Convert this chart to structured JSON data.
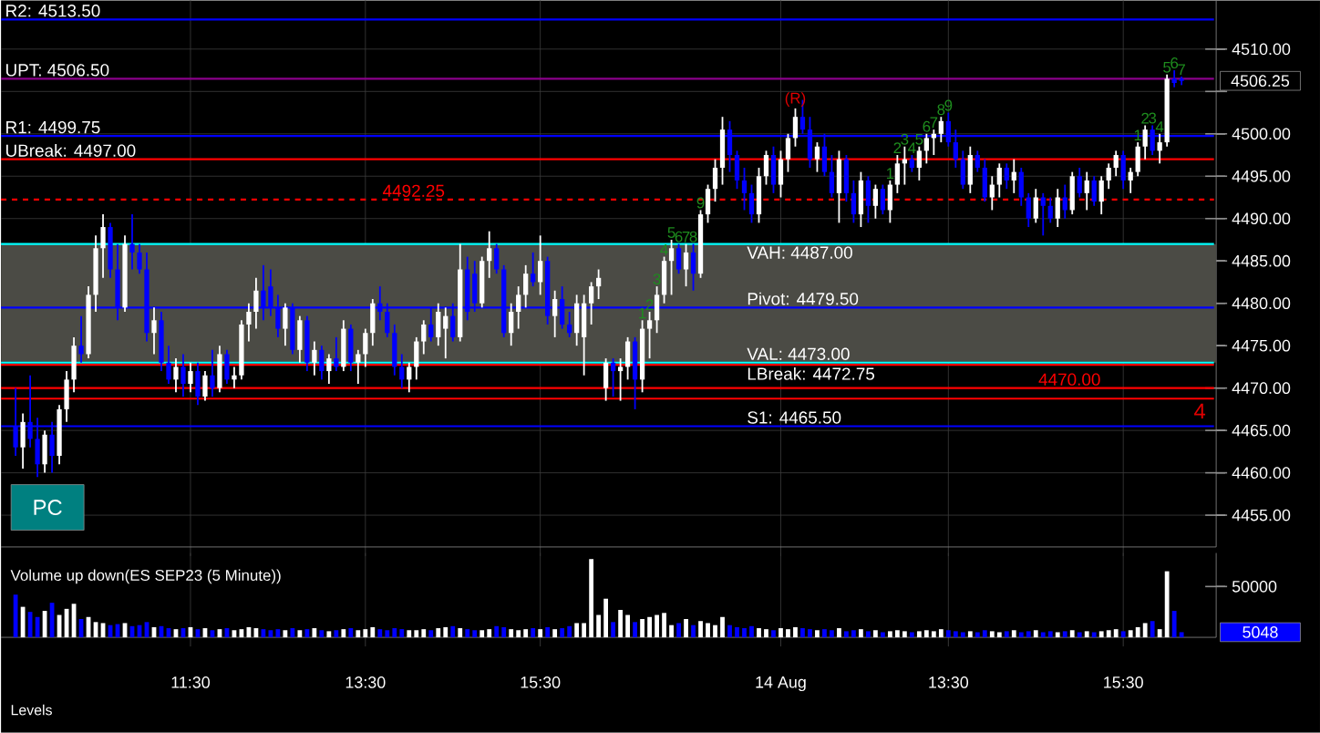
{
  "chart_data": [
    {
      "type": "candlestick",
      "categories": [
        null,
        null,
        null,
        null,
        null,
        null,
        null,
        null,
        null,
        null,
        null,
        null,
        null,
        null,
        null,
        null,
        null,
        null,
        null,
        null,
        null,
        null,
        null,
        null,
        null,
        null,
        null,
        null,
        null,
        null,
        null,
        null,
        null,
        null,
        null,
        null,
        null,
        null,
        null,
        null,
        null,
        null,
        null,
        null,
        null,
        null,
        null,
        null,
        null,
        null,
        null,
        null,
        null,
        null,
        null,
        null,
        null,
        null,
        null,
        null,
        null,
        null,
        null,
        null,
        null,
        null,
        null,
        null,
        null,
        null,
        null,
        null,
        null,
        null,
        null,
        null,
        null,
        null,
        null,
        null,
        null,
        null,
        null,
        null,
        null,
        null,
        null,
        null,
        null,
        null,
        null,
        null,
        null,
        null,
        null,
        null,
        null,
        null,
        null,
        null,
        null,
        null,
        null,
        null,
        null,
        null,
        null,
        null,
        null,
        null,
        null,
        null,
        null,
        null,
        null,
        null,
        null,
        null,
        null,
        null,
        null,
        null,
        null,
        null,
        null,
        null,
        null,
        null,
        null,
        null,
        null,
        null,
        null,
        null,
        null,
        null,
        null,
        null,
        null,
        null,
        null,
        null,
        null,
        null,
        null,
        null,
        null,
        null,
        null,
        null,
        null,
        null,
        null,
        null,
        null,
        null,
        null,
        null,
        null,
        null,
        null
      ],
      "ohlc": [
        [
          4465.5,
          4470,
          4462,
          4463
        ],
        [
          4463,
          4467,
          4460.5,
          4466
        ],
        [
          4466,
          4471.5,
          4463,
          4464
        ],
        [
          4464,
          4466.5,
          4459.5,
          4461
        ],
        [
          4461,
          4465,
          4460,
          4464.5
        ],
        [
          4464.5,
          4466,
          4460,
          4462
        ],
        [
          4462,
          4468,
          4461,
          4467.5
        ],
        [
          4467.5,
          4472,
          4466,
          4471
        ],
        [
          4471,
          4476,
          4469.5,
          4475
        ],
        [
          4475,
          4478.5,
          4473,
          4474
        ],
        [
          4474,
          4482,
          4473.5,
          4481
        ],
        [
          4481,
          4488,
          4479,
          4486.5
        ],
        [
          4486.5,
          4490.5,
          4483,
          4489
        ],
        [
          4489,
          4489.5,
          4483,
          4484
        ],
        [
          4484,
          4487,
          4478,
          4479.5
        ],
        [
          4479.5,
          4488,
          4479,
          4487
        ],
        [
          4487,
          4490.5,
          4484,
          4486
        ],
        [
          4486,
          4487,
          4483.5,
          4484
        ],
        [
          4484,
          4486,
          4475.5,
          4476.5
        ],
        [
          4476.5,
          4479.5,
          4474,
          4478
        ],
        [
          4478,
          4479,
          4472,
          4473
        ],
        [
          4473,
          4475,
          4470.5,
          4471
        ],
        [
          4471,
          4473.5,
          4469.5,
          4472.5
        ],
        [
          4472.5,
          4474,
          4469,
          4470.5
        ],
        [
          4470.5,
          4473,
          4469.5,
          4472
        ],
        [
          4472,
          4473,
          4468,
          4469
        ],
        [
          4469,
          4472,
          4468.5,
          4471.5
        ],
        [
          4471.5,
          4474.5,
          4469,
          4470
        ],
        [
          4470,
          4475,
          4469.5,
          4474
        ],
        [
          4474,
          4474.5,
          4470.5,
          4471
        ],
        [
          4471,
          4472.5,
          4470,
          4471.5
        ],
        [
          4471.5,
          4478,
          4471,
          4477.5
        ],
        [
          4477.5,
          4480,
          4475.5,
          4479
        ],
        [
          4479,
          4483,
          4477,
          4481.5
        ],
        [
          4481.5,
          4484.5,
          4478,
          4479.5
        ],
        [
          4482,
          4484,
          4478.5,
          4479.5
        ],
        [
          4479.5,
          4481,
          4476,
          4477
        ],
        [
          4477,
          4480,
          4475,
          4479.5
        ],
        [
          4479.5,
          4480,
          4474,
          4474.5
        ],
        [
          4474.5,
          4478.5,
          4473,
          4478
        ],
        [
          4478,
          4478.5,
          4472,
          4473
        ],
        [
          4473,
          4475.5,
          4471.5,
          4474.5
        ],
        [
          4474.5,
          4475,
          4471,
          4472
        ],
        [
          4472,
          4474,
          4470.5,
          4473.5
        ],
        [
          4473.5,
          4476,
          4472,
          4472.5
        ],
        [
          4472.5,
          4478,
          4472,
          4477
        ],
        [
          4477,
          4477.5,
          4472,
          4473
        ],
        [
          4473,
          4474.5,
          4470.5,
          4474
        ],
        [
          4474,
          4477,
          4472.5,
          4476.5
        ],
        [
          4476.5,
          4480.5,
          4475,
          4480
        ],
        [
          4480,
          4482,
          4478,
          4479
        ],
        [
          4479,
          4480,
          4476,
          4476.5
        ],
        [
          4476.5,
          4477.5,
          4471.5,
          4472.5
        ],
        [
          4472.5,
          4474,
          4470,
          4471
        ],
        [
          4471,
          4473,
          4469.5,
          4472.5
        ],
        [
          4472.5,
          4476,
          4471,
          4475.5
        ],
        [
          4475.5,
          4478,
          4474,
          4477.5
        ],
        [
          4477.5,
          4479.5,
          4475.5,
          4476
        ],
        [
          4476,
          4480,
          4475,
          4479
        ],
        [
          4477,
          4479.5,
          4473.5,
          4478.5
        ],
        [
          4478.5,
          4480,
          4475.5,
          4476
        ],
        [
          4476,
          4487,
          4475.5,
          4484
        ],
        [
          4484,
          4485.5,
          4478,
          4479
        ],
        [
          4483.5,
          4485,
          4479,
          4480
        ],
        [
          4480,
          4485.5,
          4479.5,
          4485
        ],
        [
          4485,
          4488.5,
          4483,
          4486.5
        ],
        [
          4486.5,
          4487,
          4483.5,
          4484
        ],
        [
          4484,
          4484.5,
          4476,
          4476.5
        ],
        [
          4476.5,
          4480,
          4475,
          4479
        ],
        [
          4479,
          4482,
          4477,
          4481
        ],
        [
          4481,
          4484.5,
          4479.5,
          4483.5
        ],
        [
          4483.5,
          4486,
          4482,
          4482.5
        ],
        [
          4482.5,
          4488,
          4481,
          4485
        ],
        [
          4485,
          4485.5,
          4477.5,
          4478.5
        ],
        [
          4478.5,
          4481.5,
          4476,
          4480.5
        ],
        [
          4480.5,
          4482,
          4477,
          4477.5
        ],
        [
          4477.5,
          4479,
          4476,
          4476.5
        ],
        [
          4476.5,
          4481,
          4475,
          4480
        ],
        [
          4476,
          4481,
          4471.5,
          4480
        ],
        [
          4480,
          4482.5,
          4477.5,
          4482
        ],
        [
          4482,
          4484,
          4480.5,
          4483
        ],
        [
          4470,
          4473.5,
          4468.5,
          4473
        ],
        [
          4473,
          4473.5,
          4469,
          4472
        ],
        [
          4472,
          4473.5,
          4468.5,
          4472.5
        ],
        [
          4472.5,
          4476,
          4471,
          4475.5
        ],
        [
          4475.5,
          4476,
          4467.5,
          4471
        ],
        [
          4471,
          4478,
          4469.5,
          4477
        ],
        [
          4477,
          4479,
          4473.5,
          4478
        ],
        [
          4478,
          4482,
          4476.5,
          4481
        ],
        [
          4481,
          4485.5,
          4480,
          4485
        ],
        [
          4485,
          4487.5,
          4481,
          4486.5
        ],
        [
          4486.5,
          4487,
          4483.5,
          4484
        ],
        [
          4484,
          4487,
          4482,
          4486
        ],
        [
          4486,
          4487,
          4481.5,
          4483.5
        ],
        [
          4483.5,
          4491,
          4483,
          4490.5
        ],
        [
          4490.5,
          4494,
          4489.5,
          4493.5
        ],
        [
          4493.5,
          4497,
          4492,
          4496
        ],
        [
          4496,
          4502,
          4494,
          4500.5
        ],
        [
          4500.5,
          4501.5,
          4495.5,
          4497.5
        ],
        [
          4497.5,
          4498,
          4493.5,
          4494.5
        ],
        [
          4494.5,
          4496,
          4491,
          4493
        ],
        [
          4493,
          4494,
          4489.5,
          4490.5
        ],
        [
          4490.5,
          4496,
          4489.5,
          4495
        ],
        [
          4495,
          4498,
          4494,
          4497.5
        ],
        [
          4497.5,
          4498.5,
          4493,
          4494
        ],
        [
          4494,
          4498,
          4492.5,
          4497
        ],
        [
          4497,
          4500,
          4495.5,
          4499.5
        ],
        [
          4499.5,
          4503,
          4498.5,
          4502
        ],
        [
          4502,
          4504,
          4500,
          4500.5
        ],
        [
          4500.5,
          4502,
          4496,
          4497
        ],
        [
          4497,
          4499,
          4495.5,
          4498.5
        ],
        [
          4498.5,
          4500,
          4495,
          4495.5
        ],
        [
          4495.5,
          4497.5,
          4492.5,
          4493
        ],
        [
          4493,
          4498,
          4489.5,
          4497
        ],
        [
          4497,
          4497.5,
          4492,
          4493
        ],
        [
          4493,
          4494.5,
          4489.5,
          4490.5
        ],
        [
          4490.5,
          4495.5,
          4489,
          4494.5
        ],
        [
          4494.5,
          4495,
          4489.5,
          4491.5
        ],
        [
          4491.5,
          4494,
          4490,
          4493.5
        ],
        [
          4493.5,
          4494,
          4490.5,
          4491
        ],
        [
          4491,
          4494.5,
          4489.5,
          4494
        ],
        [
          4494,
          4497.5,
          4493,
          4496.5
        ],
        [
          4496.5,
          4498.5,
          4494,
          4497
        ],
        [
          4497,
          4497.5,
          4495.5,
          4496
        ],
        [
          4496,
          4498.5,
          4494.5,
          4498
        ],
        [
          4498,
          4500,
          4496.5,
          4499.5
        ],
        [
          4499.5,
          4500.5,
          4497.5,
          4500
        ],
        [
          4500,
          4502,
          4499,
          4501.5
        ],
        [
          4501.5,
          4502.5,
          4498.5,
          4499
        ],
        [
          4499,
          4500.5,
          4496,
          4497
        ],
        [
          4497,
          4498,
          4493.5,
          4494
        ],
        [
          4494,
          4498.5,
          4493,
          4497.5
        ],
        [
          4497.5,
          4498,
          4495.5,
          4496
        ],
        [
          4496,
          4497,
          4492,
          4492.5
        ],
        [
          4492.5,
          4495,
          4491,
          4494
        ],
        [
          4494,
          4496.5,
          4492.5,
          4496
        ],
        [
          4496,
          4496.5,
          4493.5,
          4494.5
        ],
        [
          4494.5,
          4497,
          4493,
          4495.5
        ],
        [
          4495.5,
          4496,
          4491.5,
          4492.5
        ],
        [
          4492.5,
          4493,
          4489,
          4490
        ],
        [
          4490,
          4493.5,
          4489.5,
          4492.5
        ],
        [
          4492.5,
          4493,
          4488,
          4491.5
        ],
        [
          4491.5,
          4492.5,
          4489.5,
          4490
        ],
        [
          4490,
          4493.5,
          4489,
          4492.5
        ],
        [
          4492.5,
          4494,
          4490,
          4491
        ],
        [
          4491,
          4495.5,
          4490.5,
          4495
        ],
        [
          4495,
          4496,
          4492.5,
          4493
        ],
        [
          4493,
          4495.5,
          4491,
          4494.5
        ],
        [
          4494.5,
          4495,
          4491.5,
          4492
        ],
        [
          4492,
          4495,
          4490.5,
          4494.5
        ],
        [
          4494.5,
          4496.5,
          4493.5,
          4496
        ],
        [
          4496,
          4498,
          4495,
          4497.5
        ],
        [
          4497.5,
          4498,
          4493.5,
          4494.5
        ],
        [
          4494.5,
          4496,
          4493,
          4495.5
        ],
        [
          4495.5,
          4499,
          4495,
          4498.5
        ],
        [
          4498.5,
          4501,
          4497,
          4500.5
        ],
        [
          4500.5,
          4501,
          4497.5,
          4498
        ],
        [
          4498,
          4500,
          4496.5,
          4499
        ],
        [
          4499,
          4507,
          4498.5,
          4506.5
        ],
        [
          4506.5,
          4507.5,
          4505.5,
          4506
        ],
        [
          4506.5,
          4506.75,
          4505.75,
          4506.25
        ]
      ],
      "colors": [
        "#0000ff",
        "#ffffff",
        "#0000ff",
        "#0000ff",
        "#ffffff",
        "#0000ff",
        "#ffffff",
        "#ffffff",
        "#ffffff",
        "#0000ff",
        "#ffffff",
        "#ffffff",
        "#ffffff",
        "#0000ff",
        "#0000ff",
        "#ffffff",
        "#0000ff",
        "#0000ff",
        "#0000ff",
        "#ffffff",
        "#0000ff",
        "#0000ff",
        "#ffffff",
        "#0000ff",
        "#ffffff",
        "#0000ff",
        "#ffffff",
        "#0000ff",
        "#ffffff",
        "#0000ff",
        "#ffffff",
        "#ffffff",
        "#ffffff",
        "#ffffff",
        "#0000ff",
        "#0000ff",
        "#0000ff",
        "#ffffff",
        "#0000ff",
        "#ffffff",
        "#0000ff",
        "#ffffff",
        "#0000ff",
        "#ffffff",
        "#0000ff",
        "#ffffff",
        "#0000ff",
        "#ffffff",
        "#ffffff",
        "#ffffff",
        "#0000ff",
        "#0000ff",
        "#0000ff",
        "#0000ff",
        "#ffffff",
        "#ffffff",
        "#ffffff",
        "#0000ff",
        "#ffffff",
        "#ffffff",
        "#0000ff",
        "#ffffff",
        "#0000ff",
        "#0000ff",
        "#ffffff",
        "#ffffff",
        "#0000ff",
        "#0000ff",
        "#ffffff",
        "#ffffff",
        "#ffffff",
        "#0000ff",
        "#ffffff",
        "#0000ff",
        "#ffffff",
        "#0000ff",
        "#0000ff",
        "#ffffff",
        "#ffffff",
        "#ffffff",
        "#ffffff",
        "#ffffff",
        "#0000ff",
        "#ffffff",
        "#ffffff",
        "#0000ff",
        "#ffffff",
        "#ffffff",
        "#ffffff",
        "#ffffff",
        "#ffffff",
        "#0000ff",
        "#ffffff",
        "#0000ff",
        "#ffffff",
        "#ffffff",
        "#ffffff",
        "#ffffff",
        "#0000ff",
        "#0000ff",
        "#0000ff",
        "#0000ff",
        "#ffffff",
        "#ffffff",
        "#0000ff",
        "#ffffff",
        "#ffffff",
        "#ffffff",
        "#0000ff",
        "#0000ff",
        "#ffffff",
        "#0000ff",
        "#0000ff",
        "#ffffff",
        "#0000ff",
        "#0000ff",
        "#ffffff",
        "#0000ff",
        "#ffffff",
        "#0000ff",
        "#ffffff",
        "#ffffff",
        "#ffffff",
        "#0000ff",
        "#ffffff",
        "#ffffff",
        "#ffffff",
        "#ffffff",
        "#0000ff",
        "#0000ff",
        "#0000ff",
        "#ffffff",
        "#0000ff",
        "#0000ff",
        "#ffffff",
        "#ffffff",
        "#0000ff",
        "#ffffff",
        "#0000ff",
        "#0000ff",
        "#ffffff",
        "#0000ff",
        "#0000ff",
        "#ffffff",
        "#0000ff",
        "#ffffff",
        "#0000ff",
        "#ffffff",
        "#0000ff",
        "#ffffff",
        "#ffffff",
        "#ffffff",
        "#0000ff",
        "#ffffff",
        "#ffffff",
        "#ffffff",
        "#0000ff",
        "#ffffff",
        "#ffffff",
        "#0000ff",
        "#0000ff"
      ],
      "ylim": [
        4451.25,
        4515.75
      ],
      "yticks": [
        {
          "value": 4455,
          "label": "4455.00"
        },
        {
          "value": 4460,
          "label": "4460.00"
        },
        {
          "value": 4465,
          "label": "4465.00"
        },
        {
          "value": 4470,
          "label": "4470.00"
        },
        {
          "value": 4475,
          "label": "4475.00"
        },
        {
          "value": 4480,
          "label": "4480.00"
        },
        {
          "value": 4485,
          "label": "4485.00"
        },
        {
          "value": 4490,
          "label": "4490.00"
        },
        {
          "value": 4495,
          "label": "4495.00"
        },
        {
          "value": 4500,
          "label": "4500.00"
        },
        {
          "value": 4505,
          "label": null
        },
        {
          "value": 4510,
          "label": "4510.00"
        }
      ],
      "bands": [
        {
          "axis": "y",
          "from": 4473,
          "to": 4487,
          "color": "#4b4b45"
        }
      ],
      "ref_lines": [
        {
          "axis": "y",
          "value": 4513.5,
          "label": "R2: 4513.50",
          "color": "#0000ff"
        },
        {
          "axis": "y",
          "value": 4506.5,
          "label": "UPT: 4506.50",
          "color": "#8b008b"
        },
        {
          "axis": "y",
          "value": 4499.75,
          "label": "R1: 4499.75",
          "color": "#0000ff"
        },
        {
          "axis": "y",
          "value": 4497,
          "label": "UBreak: 4497.00",
          "color": "#ff0000"
        },
        {
          "axis": "y",
          "value": 4487,
          "label": "VAH: 4487.00",
          "color": "#00ffff"
        },
        {
          "axis": "y",
          "value": 4479.5,
          "label": "Pivot: 4479.50",
          "color": "#0000ff"
        },
        {
          "axis": "y",
          "value": 4473,
          "label": "VAL: 4473.00",
          "color": "#00ffff"
        },
        {
          "axis": "y",
          "value": 4472.75,
          "label": "LBreak: 4472.75",
          "color": "#ff0000"
        },
        {
          "axis": "y",
          "value": 4465.5,
          "label": "S1: 4465.50",
          "color": "#0000ff"
        },
        {
          "axis": "y",
          "value": 4470,
          "label": "4470.00",
          "color": "#ff0000"
        },
        {
          "axis": "y",
          "value": 4468.75,
          "color": "#ff0000"
        },
        {
          "axis": "y",
          "value": 4492.25,
          "label": "4492.25",
          "color": "#ff0000",
          "line_style": "dashed"
        }
      ],
      "annotations": [
        "PC",
        "4506.25",
        "(R)",
        "4",
        "1",
        "2",
        "3",
        "4",
        "5",
        "6",
        "7",
        "8",
        "9",
        "1",
        "2",
        "3",
        "4",
        "5",
        "6",
        "7",
        "8",
        "9",
        "1",
        "2",
        "3",
        "4",
        "5",
        "6",
        "7"
      ],
      "tick_labels": "y",
      "grid": true
    },
    {
      "type": "bar",
      "title": "Volume up down(ES SEP23 (5 Minute))",
      "categories": [
        null,
        null,
        null,
        null,
        null,
        null,
        null,
        null,
        null,
        null,
        null,
        null,
        null,
        null,
        null,
        null,
        null,
        null,
        null,
        null,
        null,
        null,
        null,
        null,
        "11:30",
        null,
        null,
        null,
        null,
        null,
        null,
        null,
        null,
        null,
        null,
        null,
        null,
        null,
        null,
        null,
        null,
        null,
        null,
        null,
        null,
        null,
        null,
        null,
        "13:30",
        null,
        null,
        null,
        null,
        null,
        null,
        null,
        null,
        null,
        null,
        null,
        null,
        null,
        null,
        null,
        null,
        null,
        null,
        null,
        null,
        null,
        null,
        null,
        "15:30",
        null,
        null,
        null,
        null,
        null,
        null,
        null,
        null,
        null,
        null,
        null,
        null,
        null,
        null,
        null,
        null,
        null,
        null,
        null,
        null,
        null,
        null,
        null,
        null,
        null,
        null,
        null,
        null,
        null,
        null,
        null,
        null,
        "14 Aug",
        null,
        null,
        null,
        null,
        null,
        null,
        null,
        null,
        null,
        null,
        null,
        null,
        null,
        null,
        null,
        null,
        null,
        null,
        null,
        null,
        null,
        null,
        "13:30",
        null,
        null,
        null,
        null,
        null,
        null,
        null,
        null,
        null,
        null,
        null,
        null,
        null,
        null,
        null,
        null,
        null,
        null,
        null,
        null,
        null,
        null,
        null,
        "15:30",
        null,
        null,
        null,
        null,
        null,
        null,
        null,
        null
      ],
      "values": [
        42000,
        30000,
        25000,
        20000,
        26000,
        34000,
        22000,
        28000,
        33000,
        18000,
        20000,
        15000,
        14000,
        12000,
        13000,
        14000,
        11000,
        12000,
        15000,
        10000,
        11000,
        9000,
        8000,
        9000,
        10000,
        8000,
        9000,
        7000,
        8000,
        9000,
        7000,
        8000,
        10000,
        9000,
        8000,
        7000,
        8000,
        7000,
        9000,
        7000,
        8000,
        9000,
        7000,
        6000,
        7000,
        8000,
        9000,
        7000,
        8000,
        10000,
        8000,
        7000,
        9000,
        8000,
        7000,
        7000,
        8000,
        7000,
        9000,
        10000,
        11000,
        9000,
        8000,
        7000,
        7000,
        8000,
        11000,
        10000,
        8000,
        7000,
        8000,
        9000,
        8000,
        10000,
        8000,
        9000,
        11000,
        14000,
        14000,
        77000,
        22000,
        38000,
        15000,
        27000,
        22000,
        15000,
        18000,
        20000,
        22000,
        24000,
        12000,
        14000,
        18000,
        12000,
        16000,
        14000,
        12000,
        20000,
        12000,
        10000,
        9000,
        11000,
        9000,
        8000,
        7000,
        9000,
        8000,
        10000,
        9000,
        8000,
        7000,
        8000,
        7000,
        9000,
        6000,
        7000,
        8000,
        6000,
        7000,
        5000,
        6000,
        7000,
        6000,
        5000,
        6000,
        7000,
        6000,
        8000,
        7000,
        6000,
        5000,
        6000,
        5000,
        7000,
        6000,
        5000,
        6000,
        7000,
        5000,
        6000,
        7000,
        5000,
        6000,
        5000,
        6000,
        7000,
        5000,
        6000,
        5000,
        6000,
        7000,
        8000,
        6000,
        7000,
        10000,
        14000,
        16000,
        8000,
        65000,
        26000,
        5048
      ],
      "colors": [
        "#0000ff",
        "#ffffff",
        "#0000ff",
        "#0000ff",
        "#ffffff",
        "#0000ff",
        "#ffffff",
        "#ffffff",
        "#ffffff",
        "#0000ff",
        "#ffffff",
        "#ffffff",
        "#ffffff",
        "#0000ff",
        "#0000ff",
        "#ffffff",
        "#0000ff",
        "#0000ff",
        "#0000ff",
        "#ffffff",
        "#0000ff",
        "#0000ff",
        "#ffffff",
        "#0000ff",
        "#ffffff",
        "#0000ff",
        "#ffffff",
        "#0000ff",
        "#ffffff",
        "#0000ff",
        "#ffffff",
        "#ffffff",
        "#ffffff",
        "#ffffff",
        "#0000ff",
        "#0000ff",
        "#0000ff",
        "#ffffff",
        "#0000ff",
        "#ffffff",
        "#0000ff",
        "#ffffff",
        "#0000ff",
        "#ffffff",
        "#0000ff",
        "#ffffff",
        "#0000ff",
        "#ffffff",
        "#ffffff",
        "#ffffff",
        "#0000ff",
        "#0000ff",
        "#0000ff",
        "#0000ff",
        "#ffffff",
        "#ffffff",
        "#ffffff",
        "#0000ff",
        "#ffffff",
        "#ffffff",
        "#0000ff",
        "#ffffff",
        "#0000ff",
        "#0000ff",
        "#ffffff",
        "#ffffff",
        "#0000ff",
        "#0000ff",
        "#ffffff",
        "#ffffff",
        "#ffffff",
        "#0000ff",
        "#ffffff",
        "#0000ff",
        "#ffffff",
        "#0000ff",
        "#0000ff",
        "#ffffff",
        "#ffffff",
        "#ffffff",
        "#ffffff",
        "#ffffff",
        "#0000ff",
        "#ffffff",
        "#ffffff",
        "#0000ff",
        "#ffffff",
        "#ffffff",
        "#ffffff",
        "#ffffff",
        "#ffffff",
        "#0000ff",
        "#ffffff",
        "#0000ff",
        "#ffffff",
        "#ffffff",
        "#ffffff",
        "#ffffff",
        "#0000ff",
        "#0000ff",
        "#0000ff",
        "#0000ff",
        "#ffffff",
        "#ffffff",
        "#0000ff",
        "#ffffff",
        "#ffffff",
        "#ffffff",
        "#0000ff",
        "#0000ff",
        "#ffffff",
        "#0000ff",
        "#0000ff",
        "#ffffff",
        "#0000ff",
        "#0000ff",
        "#ffffff",
        "#0000ff",
        "#ffffff",
        "#0000ff",
        "#ffffff",
        "#ffffff",
        "#ffffff",
        "#0000ff",
        "#ffffff",
        "#ffffff",
        "#ffffff",
        "#ffffff",
        "#0000ff",
        "#0000ff",
        "#0000ff",
        "#ffffff",
        "#0000ff",
        "#0000ff",
        "#ffffff",
        "#ffffff",
        "#0000ff",
        "#ffffff",
        "#0000ff",
        "#0000ff",
        "#ffffff",
        "#0000ff",
        "#0000ff",
        "#ffffff",
        "#0000ff",
        "#ffffff",
        "#0000ff",
        "#ffffff",
        "#0000ff",
        "#ffffff",
        "#ffffff",
        "#ffffff",
        "#0000ff",
        "#ffffff",
        "#ffffff",
        "#ffffff",
        "#0000ff",
        "#ffffff",
        "#ffffff",
        "#0000ff",
        "#0000ff"
      ],
      "ylim": [
        0,
        83000
      ],
      "yticks": [
        50000
      ],
      "annotations": [
        "Levels",
        "5048"
      ],
      "grid": "x"
    }
  ]
}
